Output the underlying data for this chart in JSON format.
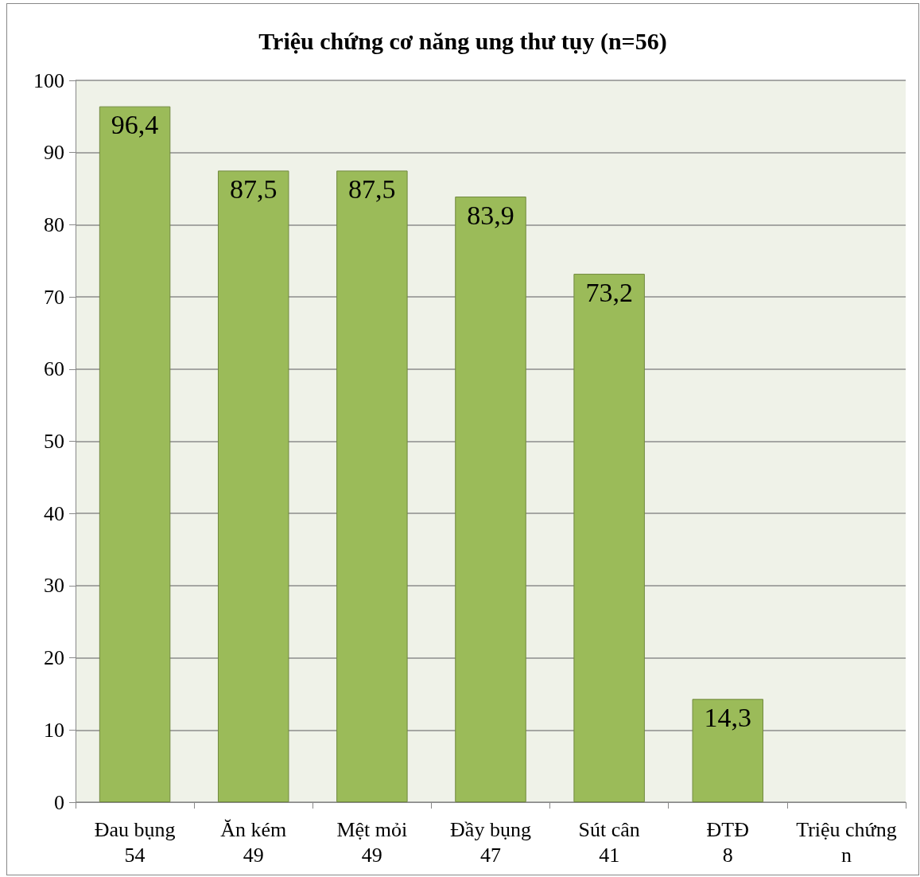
{
  "chart_data": {
    "type": "bar",
    "title": "Triệu chứng cơ năng ung thư tụy (n=56)",
    "categories": [
      "Đau bụng\n54",
      "Ăn kém\n49",
      "Mệt mỏi\n49",
      "Đầy bụng\n47",
      "Sút cân\n41",
      "ĐTĐ\n8",
      "Triệu chứng\nn"
    ],
    "values": [
      96.4,
      87.5,
      87.5,
      83.9,
      73.2,
      14.3,
      null
    ],
    "value_labels": [
      "96,4",
      "87,5",
      "87,5",
      "83,9",
      "73,2",
      "14,3",
      null
    ],
    "color": "#9bbb59",
    "ylim": [
      0,
      100
    ],
    "yticks": [
      0,
      10,
      20,
      30,
      40,
      50,
      60,
      70,
      80,
      90,
      100
    ],
    "grid": "y"
  }
}
